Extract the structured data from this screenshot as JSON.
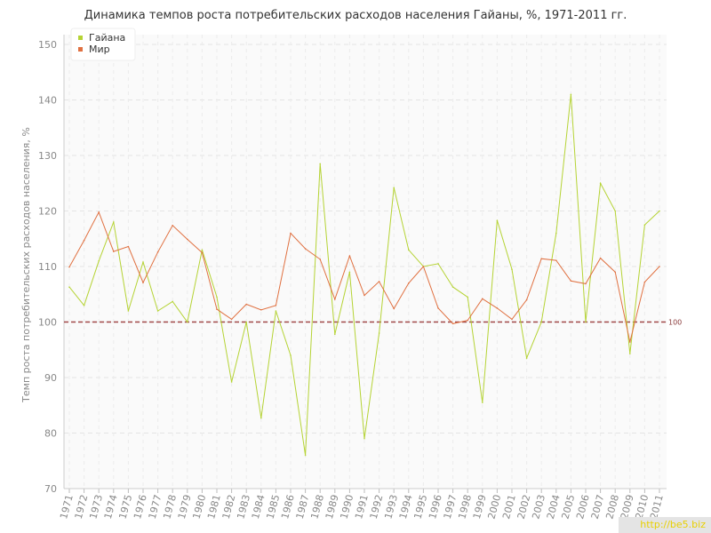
{
  "chart_data": {
    "type": "line",
    "title": "Динамика темпов роста потребительских расходов населения Гайаны, %, 1971-2011 гг.",
    "xlabel": "",
    "ylabel": "Темп роста потребительских расходов населения, %",
    "ylim": [
      70,
      150
    ],
    "yticks": [
      70,
      80,
      90,
      100,
      110,
      120,
      130,
      140,
      150
    ],
    "grid": true,
    "legend_position": "top-left",
    "x": [
      "1971",
      "1972",
      "1973",
      "1974",
      "1975",
      "1976",
      "1977",
      "1978",
      "1979",
      "1980",
      "1981",
      "1982",
      "1983",
      "1984",
      "1985",
      "1986",
      "1987",
      "1988",
      "1989",
      "1990",
      "1991",
      "1992",
      "1993",
      "1994",
      "1995",
      "1996",
      "1997",
      "1998",
      "1999",
      "2000",
      "2001",
      "2002",
      "2003",
      "2004",
      "2005",
      "2006",
      "2007",
      "2008",
      "2009",
      "2010",
      "2011"
    ],
    "series": [
      {
        "name": "Гайана",
        "color": "#b5d334",
        "values": [
          106.3,
          103.0,
          111.0,
          118.0,
          102.0,
          110.8,
          102.0,
          103.7,
          100.0,
          113.0,
          104.5,
          89.2,
          100.0,
          82.7,
          102.0,
          94.0,
          76.0,
          128.5,
          97.8,
          109.0,
          79.0,
          98.0,
          124.2,
          113.0,
          110.0,
          110.5,
          106.3,
          104.5,
          85.5,
          118.3,
          109.5,
          93.5,
          100.0,
          116.0,
          141.0,
          100.0,
          125.0,
          120.0,
          94.3,
          117.5,
          120.0
        ]
      },
      {
        "name": "Мир",
        "color": "#e07040",
        "values": [
          109.9,
          114.7,
          119.8,
          112.7,
          113.6,
          107.1,
          112.6,
          117.4,
          114.9,
          112.5,
          102.3,
          100.5,
          103.2,
          102.2,
          103.0,
          116.0,
          113.2,
          111.3,
          104.1,
          111.9,
          104.8,
          107.3,
          102.4,
          107.0,
          110.0,
          102.5,
          99.7,
          100.3,
          104.2,
          102.5,
          100.5,
          104.0,
          111.4,
          111.1,
          107.4,
          106.9,
          111.5,
          109.0,
          96.4,
          107.2,
          110.0
        ]
      }
    ],
    "reference_line": {
      "value": 100,
      "label": "100",
      "color": "#a04848"
    }
  },
  "watermark": "http://be5.biz"
}
